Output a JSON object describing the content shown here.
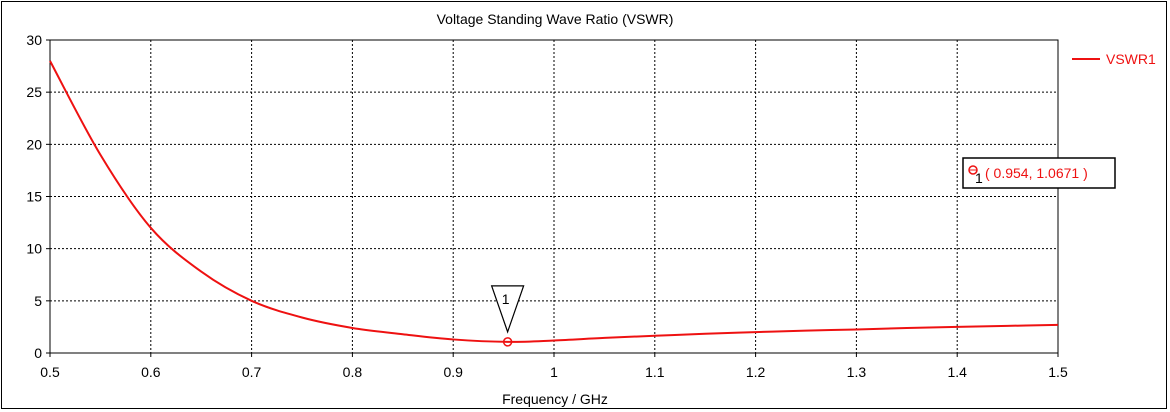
{
  "colors": {
    "series": "#ee1111",
    "grid": "#000000",
    "axis": "#000000",
    "background": "#ffffff"
  },
  "chart_data": {
    "type": "line",
    "title": "Voltage Standing Wave Ratio (VSWR)",
    "xlabel": "Frequency / GHz",
    "ylabel": "",
    "xlim": [
      0.5,
      1.5
    ],
    "ylim": [
      0,
      30
    ],
    "grid": true,
    "legend_position": "top-right",
    "x_ticks": [
      "0.5",
      "0.6",
      "0.7",
      "0.8",
      "0.9",
      "1",
      "1.1",
      "1.2",
      "1.3",
      "1.4",
      "1.5"
    ],
    "y_ticks": [
      "0",
      "5",
      "10",
      "15",
      "20",
      "25",
      "30"
    ],
    "series": [
      {
        "name": "VSWR1",
        "x": [
          0.5,
          0.55,
          0.6,
          0.65,
          0.7,
          0.75,
          0.8,
          0.85,
          0.9,
          0.954,
          1.0,
          1.05,
          1.1,
          1.15,
          1.2,
          1.25,
          1.3,
          1.35,
          1.4,
          1.45,
          1.5
        ],
        "y": [
          28.0,
          19.0,
          12.0,
          7.8,
          5.0,
          3.4,
          2.4,
          1.8,
          1.3,
          1.0671,
          1.2,
          1.45,
          1.65,
          1.85,
          2.0,
          2.15,
          2.25,
          2.4,
          2.5,
          2.6,
          2.7
        ]
      }
    ],
    "markers": [
      {
        "id": "1",
        "x": 0.954,
        "y": 1.0671,
        "label": "( 0.954, 1.0671 )"
      }
    ]
  }
}
